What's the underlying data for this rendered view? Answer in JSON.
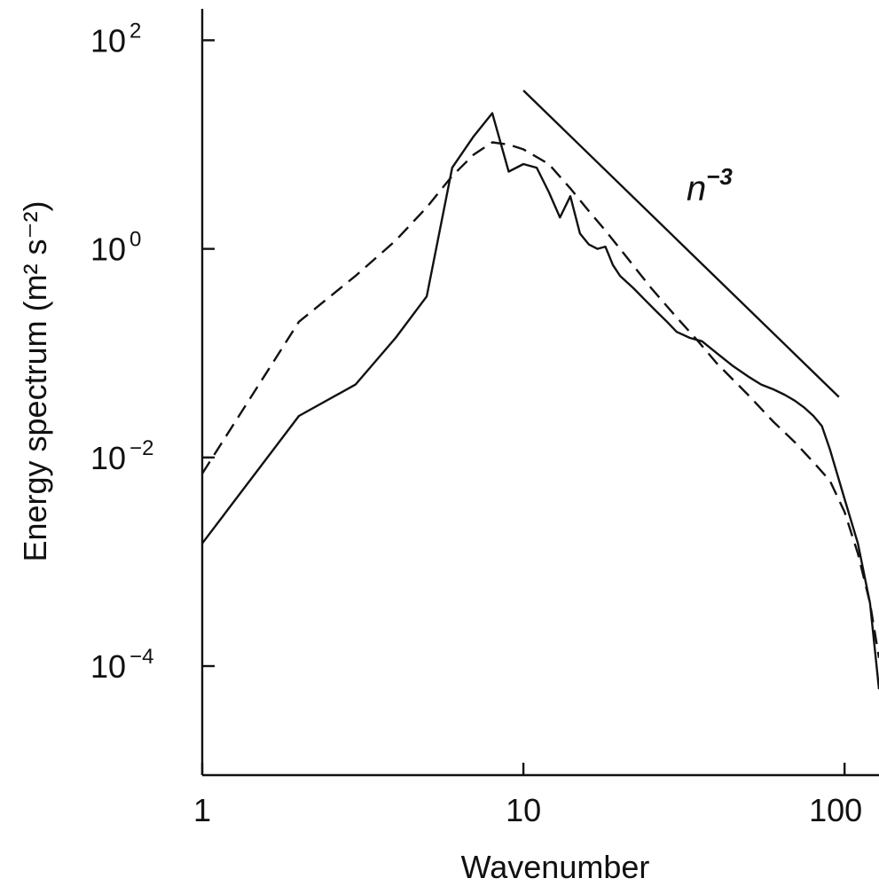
{
  "chart_data": {
    "type": "line",
    "xscale": "log",
    "yscale": "log",
    "xlim": [
      1,
      128
    ],
    "ylim": [
      9e-06,
      200
    ],
    "xlabel": "Wavenumber",
    "ylabel": "Energy spectrum (m² s⁻²)",
    "x_ticks": [
      {
        "value": 1,
        "label": "1"
      },
      {
        "value": 10,
        "label": "10"
      },
      {
        "value": 100,
        "label": "100"
      }
    ],
    "y_ticks": [
      {
        "value": 100,
        "base": "10",
        "exp": "2"
      },
      {
        "value": 1,
        "base": "10",
        "exp": "0"
      },
      {
        "value": 0.01,
        "base": "10",
        "exp": "−2"
      },
      {
        "value": 0.0001,
        "base": "10",
        "exp": "−4"
      }
    ],
    "grid": false,
    "series": [
      {
        "style": "solid",
        "x": [
          1,
          2,
          3,
          4,
          5,
          6,
          7,
          8,
          9,
          10,
          11,
          12,
          13,
          14,
          15,
          16,
          17,
          18,
          19,
          20,
          22,
          24,
          26,
          28,
          30,
          33,
          36,
          40,
          45,
          50,
          55,
          60,
          65,
          70,
          75,
          80,
          85,
          90,
          100,
          110,
          120,
          128
        ],
        "y": [
          0.0015,
          0.025,
          0.05,
          0.14,
          0.35,
          6,
          12,
          20,
          5.5,
          6.5,
          6,
          3.5,
          2.0,
          3.2,
          1.4,
          1.1,
          1.0,
          1.05,
          0.7,
          0.55,
          0.42,
          0.32,
          0.25,
          0.2,
          0.16,
          0.14,
          0.13,
          0.1,
          0.075,
          0.06,
          0.05,
          0.045,
          0.04,
          0.035,
          0.03,
          0.025,
          0.02,
          0.012,
          0.004,
          0.0015,
          0.0004,
          6e-05
        ]
      },
      {
        "style": "dashed",
        "x": [
          1,
          2,
          3,
          4,
          5,
          6,
          7,
          8,
          9,
          10,
          12,
          14,
          16,
          18,
          20,
          25,
          30,
          35,
          40,
          50,
          60,
          70,
          80,
          90,
          100,
          110,
          120,
          128
        ],
        "y": [
          0.007,
          0.2,
          0.55,
          1.2,
          2.5,
          5,
          8,
          10.5,
          10,
          9,
          6.5,
          3.8,
          2.3,
          1.5,
          1.0,
          0.42,
          0.22,
          0.13,
          0.08,
          0.04,
          0.022,
          0.014,
          0.009,
          0.006,
          0.003,
          0.0012,
          0.0004,
          0.00012
        ]
      }
    ],
    "reference_line": {
      "label_base": "n",
      "label_exp": "−3",
      "x": [
        10,
        96
      ],
      "y": [
        33,
        0.038
      ]
    }
  }
}
